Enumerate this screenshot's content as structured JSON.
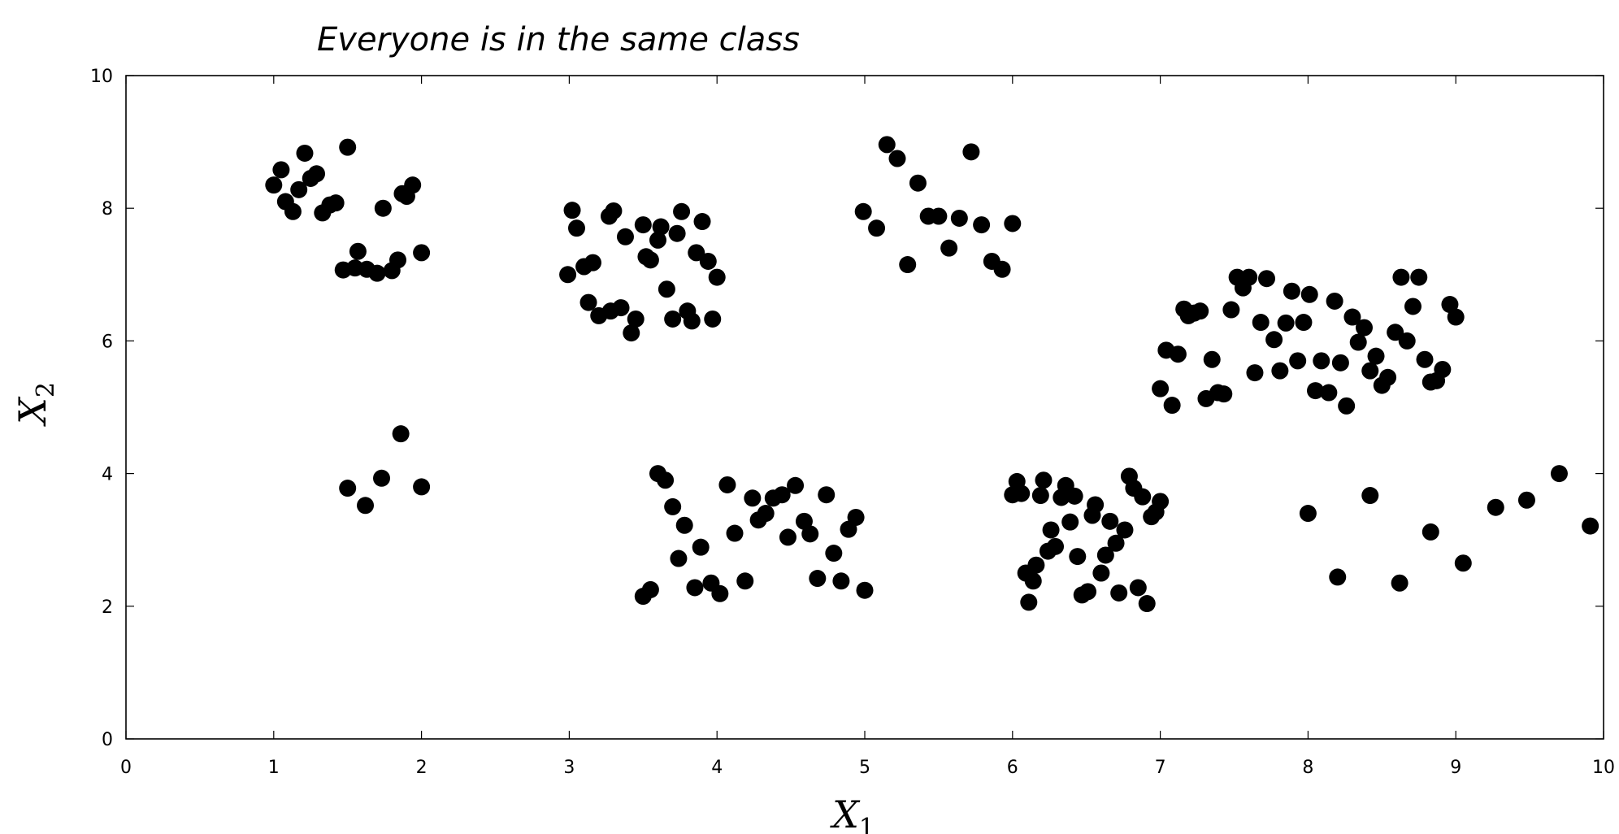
{
  "chart_data": {
    "type": "scatter",
    "annotation": "Everyone is in the same class",
    "xlabel": {
      "main": "X",
      "sub": "1"
    },
    "ylabel": {
      "main": "X",
      "sub": "2"
    },
    "xlim": [
      0,
      10
    ],
    "ylim": [
      0,
      10
    ],
    "xticks": [
      "0",
      "1",
      "2",
      "3",
      "4",
      "5",
      "6",
      "7",
      "8",
      "9",
      "10"
    ],
    "yticks": [
      "0",
      "2",
      "4",
      "6",
      "8",
      "10"
    ],
    "grid": false,
    "marker_color": "#000000",
    "points": [
      [
        1.0,
        8.35
      ],
      [
        1.05,
        8.58
      ],
      [
        1.08,
        8.1
      ],
      [
        1.13,
        7.95
      ],
      [
        1.17,
        8.28
      ],
      [
        1.21,
        8.83
      ],
      [
        1.25,
        8.45
      ],
      [
        1.29,
        8.52
      ],
      [
        1.33,
        7.93
      ],
      [
        1.38,
        8.05
      ],
      [
        1.42,
        8.08
      ],
      [
        1.5,
        8.92
      ],
      [
        1.74,
        8.0
      ],
      [
        1.87,
        8.22
      ],
      [
        1.9,
        8.18
      ],
      [
        1.94,
        8.35
      ],
      [
        1.57,
        7.35
      ],
      [
        1.47,
        7.07
      ],
      [
        1.55,
        7.1
      ],
      [
        1.63,
        7.08
      ],
      [
        1.7,
        7.02
      ],
      [
        1.8,
        7.06
      ],
      [
        1.84,
        7.22
      ],
      [
        2.0,
        7.33
      ],
      [
        1.5,
        3.78
      ],
      [
        1.62,
        3.52
      ],
      [
        1.73,
        3.93
      ],
      [
        1.86,
        4.6
      ],
      [
        2.0,
        3.8
      ],
      [
        3.02,
        7.97
      ],
      [
        3.05,
        7.7
      ],
      [
        3.1,
        7.12
      ],
      [
        3.16,
        7.18
      ],
      [
        2.99,
        7.0
      ],
      [
        3.13,
        6.58
      ],
      [
        3.2,
        6.38
      ],
      [
        3.27,
        7.88
      ],
      [
        3.3,
        7.96
      ],
      [
        3.28,
        6.45
      ],
      [
        3.35,
        6.5
      ],
      [
        3.38,
        7.57
      ],
      [
        3.42,
        6.12
      ],
      [
        3.45,
        6.33
      ],
      [
        3.5,
        7.75
      ],
      [
        3.52,
        7.27
      ],
      [
        3.55,
        7.22
      ],
      [
        3.6,
        7.52
      ],
      [
        3.62,
        7.72
      ],
      [
        3.66,
        6.78
      ],
      [
        3.7,
        6.33
      ],
      [
        3.73,
        7.62
      ],
      [
        3.76,
        7.95
      ],
      [
        3.8,
        6.45
      ],
      [
        3.83,
        6.3
      ],
      [
        3.86,
        7.33
      ],
      [
        3.9,
        7.8
      ],
      [
        3.94,
        7.2
      ],
      [
        3.97,
        6.33
      ],
      [
        4.0,
        6.96
      ],
      [
        3.6,
        4.0
      ],
      [
        3.65,
        3.9
      ],
      [
        3.7,
        3.5
      ],
      [
        3.78,
        3.22
      ],
      [
        3.74,
        2.72
      ],
      [
        3.85,
        2.28
      ],
      [
        3.89,
        2.89
      ],
      [
        3.96,
        2.35
      ],
      [
        4.02,
        2.19
      ],
      [
        4.07,
        3.83
      ],
      [
        4.12,
        3.1
      ],
      [
        4.19,
        2.38
      ],
      [
        4.24,
        3.63
      ],
      [
        4.28,
        3.3
      ],
      [
        4.33,
        3.4
      ],
      [
        4.38,
        3.63
      ],
      [
        4.44,
        3.68
      ],
      [
        4.48,
        3.04
      ],
      [
        4.53,
        3.82
      ],
      [
        4.59,
        3.28
      ],
      [
        4.63,
        3.09
      ],
      [
        4.68,
        2.42
      ],
      [
        4.74,
        3.68
      ],
      [
        4.79,
        2.8
      ],
      [
        4.84,
        2.38
      ],
      [
        4.89,
        3.16
      ],
      [
        4.94,
        3.34
      ],
      [
        5.0,
        2.24
      ],
      [
        3.5,
        2.15
      ],
      [
        3.55,
        2.25
      ],
      [
        4.99,
        7.95
      ],
      [
        5.08,
        7.7
      ],
      [
        5.15,
        8.96
      ],
      [
        5.22,
        8.75
      ],
      [
        5.29,
        7.15
      ],
      [
        5.36,
        8.38
      ],
      [
        5.43,
        7.88
      ],
      [
        5.5,
        7.88
      ],
      [
        5.57,
        7.4
      ],
      [
        5.64,
        7.85
      ],
      [
        5.72,
        8.85
      ],
      [
        5.79,
        7.75
      ],
      [
        5.86,
        7.2
      ],
      [
        5.93,
        7.08
      ],
      [
        6.0,
        7.77
      ],
      [
        6.0,
        3.68
      ],
      [
        6.03,
        3.88
      ],
      [
        6.06,
        3.7
      ],
      [
        6.09,
        2.5
      ],
      [
        6.11,
        2.06
      ],
      [
        6.14,
        2.38
      ],
      [
        6.16,
        2.62
      ],
      [
        6.19,
        3.67
      ],
      [
        6.21,
        3.9
      ],
      [
        6.24,
        2.83
      ],
      [
        6.26,
        3.15
      ],
      [
        6.29,
        2.9
      ],
      [
        6.33,
        3.64
      ],
      [
        6.36,
        3.82
      ],
      [
        6.39,
        3.27
      ],
      [
        6.42,
        3.66
      ],
      [
        6.44,
        2.75
      ],
      [
        6.47,
        2.17
      ],
      [
        6.51,
        2.22
      ],
      [
        6.54,
        3.37
      ],
      [
        6.56,
        3.53
      ],
      [
        6.6,
        2.5
      ],
      [
        6.63,
        2.77
      ],
      [
        6.66,
        3.28
      ],
      [
        6.7,
        2.95
      ],
      [
        6.72,
        2.2
      ],
      [
        6.76,
        3.15
      ],
      [
        6.79,
        3.96
      ],
      [
        6.82,
        3.78
      ],
      [
        6.85,
        2.28
      ],
      [
        6.88,
        3.65
      ],
      [
        6.91,
        2.04
      ],
      [
        6.94,
        3.35
      ],
      [
        6.97,
        3.42
      ],
      [
        7.0,
        3.58
      ],
      [
        7.0,
        5.28
      ],
      [
        7.04,
        5.86
      ],
      [
        7.08,
        5.03
      ],
      [
        7.12,
        5.8
      ],
      [
        7.16,
        6.48
      ],
      [
        7.19,
        6.38
      ],
      [
        7.23,
        6.42
      ],
      [
        7.27,
        6.45
      ],
      [
        7.31,
        5.13
      ],
      [
        7.35,
        5.72
      ],
      [
        7.39,
        5.22
      ],
      [
        7.43,
        5.2
      ],
      [
        7.48,
        6.47
      ],
      [
        7.52,
        6.96
      ],
      [
        7.56,
        6.8
      ],
      [
        7.6,
        6.96
      ],
      [
        7.64,
        5.52
      ],
      [
        7.68,
        6.28
      ],
      [
        7.72,
        6.94
      ],
      [
        7.77,
        6.02
      ],
      [
        7.81,
        5.55
      ],
      [
        7.85,
        6.27
      ],
      [
        7.89,
        6.75
      ],
      [
        7.93,
        5.7
      ],
      [
        7.97,
        6.28
      ],
      [
        8.01,
        6.7
      ],
      [
        8.05,
        5.25
      ],
      [
        8.09,
        5.7
      ],
      [
        8.14,
        5.22
      ],
      [
        8.18,
        6.6
      ],
      [
        8.22,
        5.67
      ],
      [
        8.26,
        5.02
      ],
      [
        8.3,
        6.36
      ],
      [
        8.34,
        5.98
      ],
      [
        8.38,
        6.2
      ],
      [
        8.42,
        5.55
      ],
      [
        8.46,
        5.77
      ],
      [
        8.5,
        5.33
      ],
      [
        8.54,
        5.45
      ],
      [
        8.59,
        6.13
      ],
      [
        8.63,
        6.96
      ],
      [
        8.67,
        6.0
      ],
      [
        8.71,
        6.52
      ],
      [
        8.75,
        6.96
      ],
      [
        8.79,
        5.72
      ],
      [
        8.83,
        5.38
      ],
      [
        8.87,
        5.4
      ],
      [
        8.91,
        5.57
      ],
      [
        8.96,
        6.55
      ],
      [
        9.0,
        6.36
      ],
      [
        8.0,
        3.4
      ],
      [
        8.2,
        2.44
      ],
      [
        8.42,
        3.67
      ],
      [
        8.62,
        2.35
      ],
      [
        8.83,
        3.12
      ],
      [
        9.05,
        2.65
      ],
      [
        9.27,
        3.49
      ],
      [
        9.48,
        3.6
      ],
      [
        9.7,
        4.0
      ],
      [
        9.91,
        3.21
      ]
    ]
  }
}
